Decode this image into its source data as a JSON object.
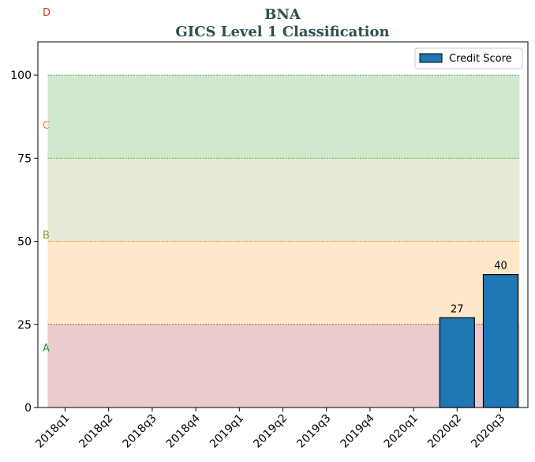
{
  "chart_data": {
    "type": "bar",
    "title": "BNA",
    "subtitle": "GICS Level 1 Classification",
    "categories": [
      "2018q1",
      "2018q2",
      "2018q3",
      "2018q4",
      "2019q1",
      "2019q2",
      "2019q3",
      "2019q4",
      "2020q1",
      "2020q2",
      "2020q3"
    ],
    "series": [
      {
        "name": "Credit Score",
        "values": [
          null,
          null,
          null,
          null,
          null,
          null,
          null,
          null,
          null,
          27,
          40
        ],
        "color": "#1f77b4"
      }
    ],
    "data_labels": [
      "",
      "",
      "",
      "",
      "",
      "",
      "",
      "",
      "",
      "27",
      "40"
    ],
    "ylim": [
      0,
      110
    ],
    "yticks": [
      0,
      25,
      50,
      75,
      100
    ],
    "xlabel": "",
    "ylabel": "",
    "legend_position": "top-right",
    "grid": false,
    "bands": [
      {
        "label": "A",
        "from": 0,
        "to": 25,
        "fill": "#d9a3a8",
        "line": "#8b1a1a",
        "label_color": "#2e8b2e",
        "label_y": 18
      },
      {
        "label": "B",
        "from": 25,
        "to": 50,
        "fill": "#ffd59e",
        "line": "#e08a00",
        "label_color": "#7a9a2a",
        "label_y": 52
      },
      {
        "label": "C",
        "from": 50,
        "to": 75,
        "fill": "#d2d8b3",
        "line": "#6b8e23",
        "label_color": "#e08a00",
        "label_y": 85
      },
      {
        "label": "D",
        "from": 75,
        "to": 100,
        "fill": "#a9d6a9",
        "line": "#2e8b2e",
        "label_color": "#c0392b",
        "label_y": 119
      }
    ]
  }
}
